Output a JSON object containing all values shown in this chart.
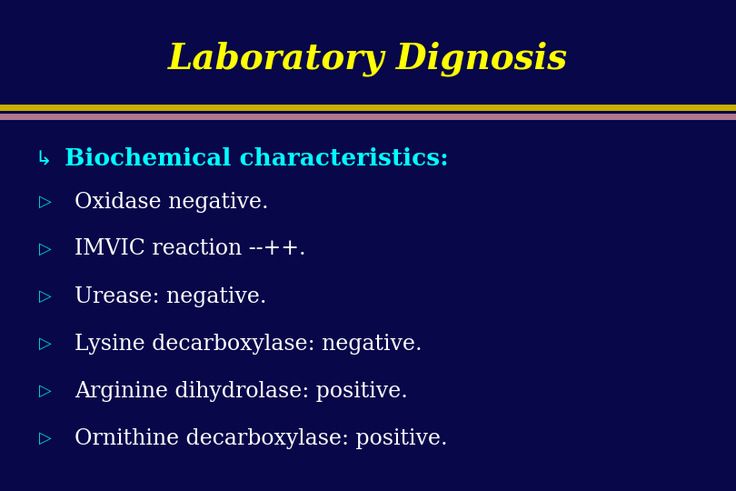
{
  "title": "Laboratory Dignosis",
  "title_color": "#FFFF00",
  "title_fontsize": 28,
  "bg_color": "#07074A",
  "sep_color_top": "#C8B000",
  "sep_color_bot": "#B07890",
  "section_symbol": "↳",
  "section_text": " Biochemical characteristics:",
  "section_color": "#00FFFF",
  "section_fontsize": 19,
  "bullet_symbol": "➢",
  "bullet_color": "#FFFFFF",
  "bullet_marker_color": "#00CCCC",
  "bullet_fontsize": 17,
  "bullets": [
    "Oxidase negative.",
    "IMVIC reaction --++.",
    "Urease: negative.",
    "Lysine decarboxylase: negative.",
    "Arginine dihydrolase: positive.",
    "Ornithine decarboxylase: positive."
  ],
  "figw": 8.1,
  "figh": 5.4,
  "dpi": 100
}
